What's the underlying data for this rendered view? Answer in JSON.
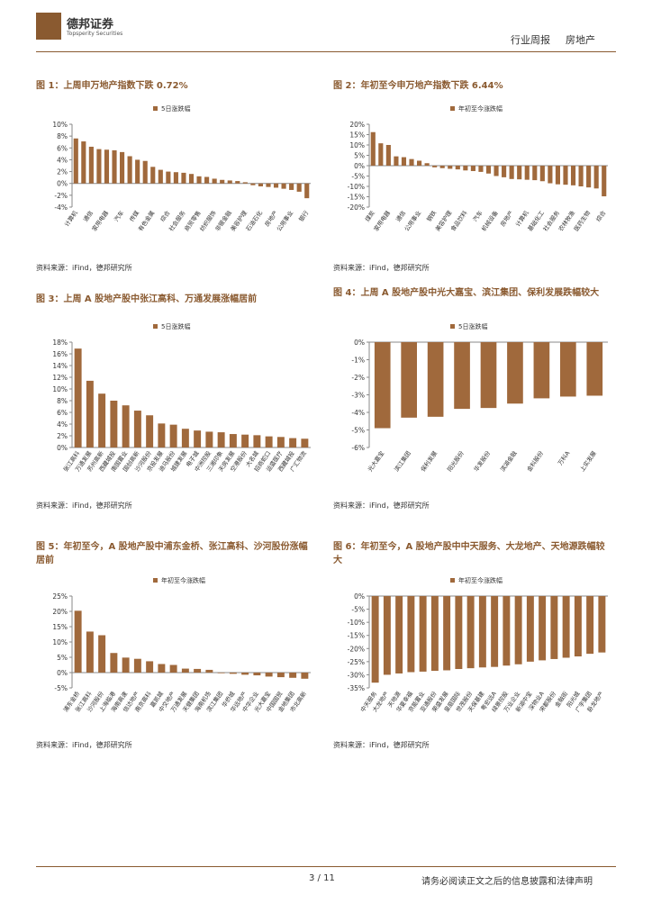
{
  "header": {
    "logo": "德邦证券",
    "logo_en": "Topsperity Securities",
    "report_type": "行业周报",
    "industry": "房地产"
  },
  "chart_data": [
    {
      "type": "bar",
      "title": "图 1：上周申万地产指数下跌 0.72%",
      "categories": [
        "计算机",
        null,
        "通信",
        null,
        "家用电器",
        null,
        "汽车",
        null,
        "传媒",
        null,
        "有色金属",
        null,
        "综合",
        null,
        "社会服务",
        null,
        "商贸零售",
        null,
        "纺织服饰",
        null,
        "非银金融",
        null,
        "美容护理",
        null,
        "石油石化",
        null,
        "房地产",
        null,
        "公用事业",
        null,
        "银行"
      ],
      "series": [
        {
          "name": "5日涨跌幅",
          "color": "#a0693c",
          "values": [
            7.6,
            7.1,
            6.2,
            5.8,
            5.7,
            5.6,
            5.3,
            4.6,
            4.0,
            3.8,
            2.8,
            2.3,
            2.0,
            1.9,
            1.8,
            1.6,
            1.2,
            1.1,
            0.8,
            0.6,
            0.5,
            0.4,
            0.2,
            -0.3,
            -0.5,
            -0.6,
            -0.72,
            -0.9,
            -1.1,
            -1.4,
            -2.5
          ]
        }
      ],
      "ylim": [
        -4,
        10
      ],
      "yticks": [
        {
          "value": -4,
          "label": "-4%"
        },
        {
          "value": -2,
          "label": "-2%"
        },
        {
          "value": 0,
          "label": "0%"
        },
        {
          "value": 2,
          "label": "2%"
        },
        {
          "value": 4,
          "label": "4%"
        },
        {
          "value": 6,
          "label": "6%"
        },
        {
          "value": 8,
          "label": "8%"
        },
        {
          "value": 10,
          "label": "10%"
        }
      ],
      "legend": "top"
    },
    {
      "type": "bar",
      "title": "图 2：年初至今申万地产指数下跌 6.44%",
      "categories": [
        "煤炭",
        null,
        "家用电器",
        null,
        "通信",
        null,
        "公用事业",
        null,
        "钢铁",
        null,
        "美容护理",
        null,
        "食品饮料",
        null,
        "汽车",
        null,
        "机械设备",
        null,
        "房地产",
        null,
        "计算机",
        null,
        "基础化工",
        null,
        "社会服务",
        null,
        "农林牧渔",
        null,
        "医药生物",
        null,
        "综合"
      ],
      "series": [
        {
          "name": "年初至今涨跌幅",
          "color": "#a0693c",
          "values": [
            16.2,
            10.8,
            10.0,
            4.5,
            4.1,
            3.2,
            2.4,
            1.2,
            -0.8,
            -1.2,
            -1.5,
            -1.8,
            -2.3,
            -2.6,
            -3.0,
            -3.8,
            -5.0,
            -5.6,
            -6.44,
            -6.6,
            -6.8,
            -7.0,
            -7.5,
            -8.5,
            -9.0,
            -9.2,
            -9.5,
            -10.0,
            -10.5,
            -11.0,
            -14.8
          ]
        }
      ],
      "ylim": [
        -20,
        20
      ],
      "yticks": [
        {
          "value": -20,
          "label": "-20%"
        },
        {
          "value": -15,
          "label": "-15%"
        },
        {
          "value": -10,
          "label": "-10%"
        },
        {
          "value": -5,
          "label": "-5%"
        },
        {
          "value": 0,
          "label": "0%"
        },
        {
          "value": 5,
          "label": "5%"
        },
        {
          "value": 10,
          "label": "10%"
        },
        {
          "value": 15,
          "label": "15%"
        },
        {
          "value": 20,
          "label": "20%"
        }
      ],
      "legend": "top"
    },
    {
      "type": "bar",
      "title": "图 3：上周 A 股地产股中张江高科、万通发展涨幅居前",
      "categories": [
        "张江高科",
        "万通发展",
        "苏州高新",
        "西藏城投",
        "南国置业",
        "国创高新",
        "沙河股份",
        "京投发展",
        "迪马股份",
        "城建发展",
        "电子城",
        "中洲控股",
        "三湘印象",
        "天房发展",
        "空港股份",
        "大名城",
        "招商蛇口",
        "运盛医疗",
        "西藏城投",
        "广汇物流"
      ],
      "series": [
        {
          "name": "5日涨跌幅",
          "color": "#a0693c",
          "values": [
            16.9,
            11.4,
            9.2,
            8.0,
            7.2,
            6.3,
            5.5,
            4.1,
            3.9,
            3.2,
            2.9,
            2.7,
            2.6,
            2.3,
            2.2,
            2.1,
            1.9,
            1.8,
            1.6,
            1.5
          ]
        }
      ],
      "ylim": [
        0,
        18
      ],
      "yticks": [
        {
          "value": 0,
          "label": "0%"
        },
        {
          "value": 2,
          "label": "2%"
        },
        {
          "value": 4,
          "label": "4%"
        },
        {
          "value": 6,
          "label": "6%"
        },
        {
          "value": 8,
          "label": "8%"
        },
        {
          "value": 10,
          "label": "10%"
        },
        {
          "value": 12,
          "label": "12%"
        },
        {
          "value": 14,
          "label": "14%"
        },
        {
          "value": 16,
          "label": "16%"
        },
        {
          "value": 18,
          "label": "18%"
        }
      ],
      "legend": "top"
    },
    {
      "type": "bar",
      "title": "图 4：上周 A 股地产股中光大嘉宝、滨江集团、保利发展跌幅较大",
      "categories": [
        "光大嘉宝",
        "滨江集团",
        "保利发展",
        "阳光股份",
        "华发股份",
        "滨湖金融",
        "金科股份",
        "万科A",
        "上实发展"
      ],
      "series": [
        {
          "name": "5日涨跌幅",
          "color": "#a0693c",
          "values": [
            -4.9,
            -4.3,
            -4.25,
            -3.8,
            -3.75,
            -3.5,
            -3.2,
            -3.1,
            -3.05
          ]
        }
      ],
      "ylim": [
        -6,
        0
      ],
      "yticks": [
        {
          "value": -6,
          "label": "-6%"
        },
        {
          "value": -5,
          "label": "-5%"
        },
        {
          "value": -4,
          "label": "-4%"
        },
        {
          "value": -3,
          "label": "-3%"
        },
        {
          "value": -2,
          "label": "-2%"
        },
        {
          "value": -1,
          "label": "-1%"
        },
        {
          "value": 0,
          "label": "0%"
        }
      ],
      "legend": "top"
    },
    {
      "type": "bar",
      "title": "图 5：年初至今，A 股地产股中浦东金桥、张江高科、沙河股份涨幅居前",
      "categories": [
        "浦东金桥",
        "张江高科",
        "沙河股份",
        "上海临港",
        "海南高速",
        "信达地产",
        "南京高科",
        "嘉凯城",
        "中交地产",
        "万通发展",
        "天健集团",
        "海南机场",
        "滨江集团",
        "华侨城",
        "华远地产",
        "中华企业",
        "光大嘉宝",
        "中国国贸",
        "金地集团",
        "市北高新"
      ],
      "series": [
        {
          "name": "年初至今涨跌幅",
          "color": "#a0693c",
          "values": [
            20.2,
            13.4,
            12.2,
            6.4,
            4.9,
            4.5,
            3.7,
            2.8,
            2.5,
            1.3,
            1.2,
            0.9,
            -0.2,
            -0.4,
            -0.7,
            -0.9,
            -1.3,
            -1.5,
            -1.7,
            -2.0
          ]
        }
      ],
      "ylim": [
        -5,
        25
      ],
      "yticks": [
        {
          "value": -5,
          "label": "-5%"
        },
        {
          "value": 0,
          "label": "0%"
        },
        {
          "value": 5,
          "label": "5%"
        },
        {
          "value": 10,
          "label": "10%"
        },
        {
          "value": 15,
          "label": "15%"
        },
        {
          "value": 20,
          "label": "20%"
        },
        {
          "value": 25,
          "label": "25%"
        }
      ],
      "legend": "top"
    },
    {
      "type": "bar",
      "title": "图 6：年初至今，A 股地产股中中天服务、大龙地产、天地源跌幅较大",
      "categories": [
        "中天服务",
        "大龙地产",
        "天地源",
        "华夏幸福",
        "京能置业",
        "亚通股份",
        "荣盛发展",
        "皇庭国际",
        "世茂股份",
        "天保基建",
        "粤宏远A",
        "绿景控股",
        "万业企业",
        "新湖中宝",
        "深物业A",
        "宋都股份",
        "金融街",
        "阳光城",
        "广宇集团",
        "卧龙地产"
      ],
      "series": [
        {
          "name": "年初至今涨跌幅",
          "color": "#a0693c",
          "values": [
            -33,
            -30,
            -29.5,
            -29,
            -28.8,
            -28.5,
            -28.3,
            -27.8,
            -27.5,
            -27.2,
            -27,
            -26.5,
            -26,
            -25,
            -24.5,
            -24,
            -23.5,
            -23,
            -22,
            -21.5
          ]
        }
      ],
      "ylim": [
        -35,
        0
      ],
      "yticks": [
        {
          "value": -35,
          "label": "-35%"
        },
        {
          "value": -30,
          "label": "-30%"
        },
        {
          "value": -25,
          "label": "-25%"
        },
        {
          "value": -20,
          "label": "-20%"
        },
        {
          "value": -15,
          "label": "-15%"
        },
        {
          "value": -10,
          "label": "-10%"
        },
        {
          "value": -5,
          "label": "-5%"
        },
        {
          "value": 0,
          "label": "0%"
        }
      ],
      "legend": "top"
    }
  ],
  "sources": [
    "资料来源：iFind，德邦研究所",
    "资料来源：iFind，德邦研究所",
    "资料来源：iFind，德邦研究所",
    "资料来源：iFind，德邦研究所",
    "资料来源：iFind，德邦研究所",
    "资料来源：iFind，德邦研究所"
  ],
  "footer": {
    "page": "3 / 11",
    "disclaimer": "请务必阅读正文之后的信息披露和法律声明"
  }
}
